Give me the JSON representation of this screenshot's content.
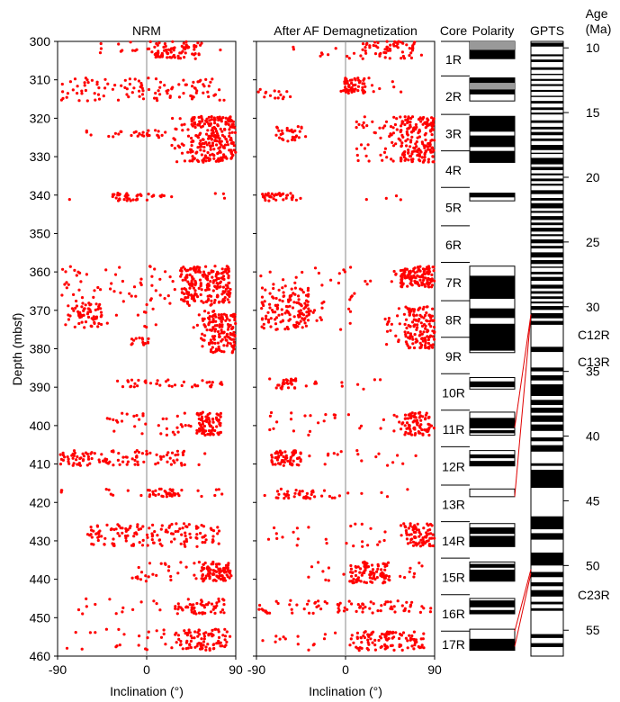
{
  "chart_data": [
    {
      "type": "scatter",
      "title": "NRM",
      "xlabel": "Inclination (°)",
      "ylabel": "Depth (mbsf)",
      "xlim": [
        -90,
        90
      ],
      "ylim": [
        300,
        460
      ],
      "xticks": [
        -90,
        0,
        90
      ],
      "yticks": [
        300,
        310,
        320,
        330,
        340,
        350,
        360,
        370,
        380,
        390,
        400,
        410,
        420,
        430,
        440,
        450,
        460
      ],
      "point_color": "#ff0000",
      "grid": false,
      "clusters": [
        {
          "depth": [
            300,
            304.5
          ],
          "inc": [
            -50,
            75
          ],
          "dense": [
            5,
            55
          ],
          "n": 90
        },
        {
          "depth": [
            309.5,
            315.5
          ],
          "inc": [
            -88,
            80
          ],
          "dense": [
            -85,
            80
          ],
          "n": 110
        },
        {
          "depth": [
            319.5,
            331.5
          ],
          "inc": [
            25,
            90
          ],
          "dense": [
            45,
            90
          ],
          "n": 260
        },
        {
          "depth": [
            323,
            325
          ],
          "inc": [
            -62,
            20
          ],
          "dense": [
            -62,
            20
          ],
          "n": 30
        },
        {
          "depth": [
            339.5,
            341.5
          ],
          "inc": [
            -80,
            87
          ],
          "dense": [
            -35,
            20
          ],
          "n": 45
        },
        {
          "depth": [
            358.5,
            368
          ],
          "inc": [
            -88,
            85
          ],
          "dense": [
            35,
            85
          ],
          "n": 260
        },
        {
          "depth": [
            368,
            374.5
          ],
          "inc": [
            -82,
            82
          ],
          "dense": [
            -82,
            -45
          ],
          "n": 90
        },
        {
          "depth": [
            371,
            381
          ],
          "inc": [
            55,
            90
          ],
          "dense": [
            62,
            90
          ],
          "n": 140
        },
        {
          "depth": [
            377,
            379
          ],
          "inc": [
            -20,
            5
          ],
          "dense": [
            -5,
            2
          ],
          "n": 15
        },
        {
          "depth": [
            388,
            390
          ],
          "inc": [
            -65,
            80
          ],
          "dense": [
            -30,
            80
          ],
          "n": 40
        },
        {
          "depth": [
            396.5,
            402.5
          ],
          "inc": [
            -40,
            75
          ],
          "dense": [
            50,
            75
          ],
          "n": 120
        },
        {
          "depth": [
            406.5,
            410.5
          ],
          "inc": [
            -88,
            60
          ],
          "dense": [
            -88,
            40
          ],
          "n": 110
        },
        {
          "depth": [
            416.5,
            418.5
          ],
          "inc": [
            -90,
            85
          ],
          "dense": [
            0,
            40
          ],
          "n": 50
        },
        {
          "depth": [
            425.5,
            431.5
          ],
          "inc": [
            -60,
            75
          ],
          "dense": [
            -60,
            75
          ],
          "n": 140
        },
        {
          "depth": [
            435.5,
            440.5
          ],
          "inc": [
            -15,
            90
          ],
          "dense": [
            55,
            85
          ],
          "n": 110
        },
        {
          "depth": [
            445,
            449
          ],
          "inc": [
            -70,
            80
          ],
          "dense": [
            30,
            80
          ],
          "n": 70
        },
        {
          "depth": [
            453,
            458.5
          ],
          "inc": [
            -85,
            85
          ],
          "dense": [
            30,
            85
          ],
          "n": 110
        }
      ]
    },
    {
      "type": "scatter",
      "title": "After AF Demagnetization",
      "xlabel": "Inclination (°)",
      "ylabel": "Depth (mbsf)",
      "xlim": [
        -90,
        90
      ],
      "ylim": [
        300,
        460
      ],
      "xticks": [
        -90,
        0,
        90
      ],
      "yticks": [
        300,
        310,
        320,
        330,
        340,
        350,
        360,
        370,
        380,
        390,
        400,
        410,
        420,
        430,
        440,
        450,
        460
      ],
      "point_color": "#ff0000",
      "grid": false,
      "clusters": [
        {
          "depth": [
            300,
            304.5
          ],
          "inc": [
            -60,
            80
          ],
          "dense": [
            15,
            70
          ],
          "n": 70
        },
        {
          "depth": [
            309.5,
            313.5
          ],
          "inc": [
            -5,
            60
          ],
          "dense": [
            -5,
            20
          ],
          "n": 60
        },
        {
          "depth": [
            312.5,
            315
          ],
          "inc": [
            -90,
            -55
          ],
          "dense": [
            -90,
            -55
          ],
          "n": 15
        },
        {
          "depth": [
            319.5,
            331.5
          ],
          "inc": [
            10,
            90
          ],
          "dense": [
            55,
            90
          ],
          "n": 220
        },
        {
          "depth": [
            322,
            326
          ],
          "inc": [
            -70,
            -35
          ],
          "dense": [
            -70,
            -35
          ],
          "n": 30
        },
        {
          "depth": [
            339.5,
            341.5
          ],
          "inc": [
            -88,
            85
          ],
          "dense": [
            -85,
            -50
          ],
          "n": 40
        },
        {
          "depth": [
            358.5,
            364
          ],
          "inc": [
            -90,
            90
          ],
          "dense": [
            55,
            90
          ],
          "n": 150
        },
        {
          "depth": [
            364,
            375
          ],
          "inc": [
            -90,
            10
          ],
          "dense": [
            -85,
            -35
          ],
          "n": 150
        },
        {
          "depth": [
            369,
            380
          ],
          "inc": [
            40,
            90
          ],
          "dense": [
            60,
            90
          ],
          "n": 150
        },
        {
          "depth": [
            387.5,
            390.5
          ],
          "inc": [
            -88,
            90
          ],
          "dense": [
            -70,
            -50
          ],
          "n": 40
        },
        {
          "depth": [
            396.5,
            402.5
          ],
          "inc": [
            -80,
            90
          ],
          "dense": [
            60,
            85
          ],
          "n": 110
        },
        {
          "depth": [
            406.5,
            410.5
          ],
          "inc": [
            -85,
            75
          ],
          "dense": [
            -75,
            -45
          ],
          "n": 80
        },
        {
          "depth": [
            416.5,
            419
          ],
          "inc": [
            -90,
            80
          ],
          "dense": [
            -70,
            -30
          ],
          "n": 45
        },
        {
          "depth": [
            425.5,
            431.5
          ],
          "inc": [
            -80,
            90
          ],
          "dense": [
            60,
            90
          ],
          "n": 100
        },
        {
          "depth": [
            435.5,
            441
          ],
          "inc": [
            -40,
            80
          ],
          "dense": [
            5,
            45
          ],
          "n": 110
        },
        {
          "depth": [
            445.5,
            449
          ],
          "inc": [
            -90,
            90
          ],
          "dense": [
            -85,
            90
          ],
          "n": 80
        },
        {
          "depth": [
            453.5,
            458.5
          ],
          "inc": [
            -85,
            80
          ],
          "dense": [
            5,
            80
          ],
          "n": 120
        }
      ]
    },
    {
      "type": "table",
      "title": "Core",
      "depth_range": [
        300,
        460
      ],
      "cores": [
        {
          "label": "1R",
          "top": 300,
          "bottom": 309
        },
        {
          "label": "2R",
          "top": 309,
          "bottom": 319
        },
        {
          "label": "3R",
          "top": 319,
          "bottom": 328.5
        },
        {
          "label": "4R",
          "top": 328.5,
          "bottom": 338
        },
        {
          "label": "5R",
          "top": 338,
          "bottom": 348
        },
        {
          "label": "6R",
          "top": 348,
          "bottom": 357.5
        },
        {
          "label": "7R",
          "top": 357.5,
          "bottom": 367.5
        },
        {
          "label": "8R",
          "top": 367.5,
          "bottom": 377
        },
        {
          "label": "9R",
          "top": 377,
          "bottom": 386.5
        },
        {
          "label": "10R",
          "top": 386.5,
          "bottom": 396
        },
        {
          "label": "11R",
          "top": 396,
          "bottom": 405.5
        },
        {
          "label": "12R",
          "top": 405.5,
          "bottom": 415.5
        },
        {
          "label": "13R",
          "top": 415.5,
          "bottom": 425
        },
        {
          "label": "14R",
          "top": 425,
          "bottom": 434.5
        },
        {
          "label": "15R",
          "top": 434.5,
          "bottom": 444
        },
        {
          "label": "16R",
          "top": 444,
          "bottom": 453.5
        },
        {
          "label": "17R",
          "top": 453.5,
          "bottom": 460
        }
      ]
    },
    {
      "type": "table",
      "title": "Polarity",
      "depth_range": [
        300,
        460
      ],
      "legend": {
        "normal": "#000000",
        "reversed": "#ffffff",
        "uncertain": "#999999"
      },
      "recovered_intervals": [
        [
          300,
          304.5
        ],
        [
          309.5,
          315.5
        ],
        [
          319.5,
          331.5
        ],
        [
          339.5,
          341.5
        ],
        [
          358.5,
          381
        ],
        [
          387.5,
          390.5
        ],
        [
          396.5,
          402.5
        ],
        [
          406.5,
          410.5
        ],
        [
          416.5,
          418.5
        ],
        [
          425.5,
          431.5
        ],
        [
          435.5,
          440.5
        ],
        [
          445,
          449
        ],
        [
          453,
          458.5
        ]
      ],
      "normal_intervals": [
        [
          302.2,
          304.5
        ],
        [
          309.5,
          310.8
        ],
        [
          312.5,
          313.8
        ],
        [
          319.5,
          323.5
        ],
        [
          324.5,
          327.5
        ],
        [
          328.5,
          331.5
        ],
        [
          339.5,
          340.6
        ],
        [
          361,
          367
        ],
        [
          369.5,
          372
        ],
        [
          373.5,
          380.5
        ],
        [
          388.5,
          390
        ],
        [
          398,
          400.7
        ],
        [
          401.2,
          402
        ],
        [
          407.5,
          408.5
        ],
        [
          409.2,
          410.5
        ],
        [
          426.5,
          428.2
        ],
        [
          428.7,
          431.5
        ],
        [
          436,
          437
        ],
        [
          437.5,
          440.5
        ],
        [
          445.5,
          447.3
        ],
        [
          448,
          449
        ],
        [
          455.5,
          458.5
        ]
      ],
      "uncertain_intervals": [
        [
          300,
          302.2
        ],
        [
          310.8,
          312.5
        ],
        [
          446,
          446.7
        ]
      ]
    },
    {
      "type": "table",
      "title": "GPTS",
      "ylabel": "Age (Ma)",
      "ylim": [
        9.5,
        57
      ],
      "yticks": [
        10,
        15,
        20,
        25,
        30,
        35,
        40,
        45,
        50,
        55
      ],
      "annotations": [
        "C12R",
        "C13R",
        "C23R"
      ],
      "normal_chrons": [
        [
          9.6,
          9.9
        ],
        [
          10.5,
          10.65
        ],
        [
          10.9,
          11.1
        ],
        [
          11.5,
          11.7
        ],
        [
          12.0,
          12.1
        ],
        [
          12.4,
          12.55
        ],
        [
          12.8,
          12.95
        ],
        [
          13.25,
          13.4
        ],
        [
          13.7,
          13.8
        ],
        [
          14.1,
          14.3
        ],
        [
          14.6,
          14.8
        ],
        [
          15.0,
          15.15
        ],
        [
          15.6,
          15.8
        ],
        [
          16.1,
          16.3
        ],
        [
          16.5,
          16.75
        ],
        [
          17.0,
          17.2
        ],
        [
          17.5,
          17.9
        ],
        [
          18.1,
          18.2
        ],
        [
          18.5,
          19.0
        ],
        [
          19.2,
          19.45
        ],
        [
          19.7,
          19.85
        ],
        [
          20.1,
          20.3
        ],
        [
          20.5,
          20.65
        ],
        [
          21.0,
          21.3
        ],
        [
          21.6,
          21.8
        ],
        [
          22.0,
          22.4
        ],
        [
          22.6,
          22.75
        ],
        [
          23.0,
          23.3
        ],
        [
          23.5,
          23.7
        ],
        [
          23.9,
          24.2
        ],
        [
          24.4,
          24.55
        ],
        [
          24.8,
          25.1
        ],
        [
          25.3,
          25.5
        ],
        [
          25.8,
          26.2
        ],
        [
          26.4,
          26.7
        ],
        [
          26.9,
          27.0
        ],
        [
          27.3,
          27.5
        ],
        [
          27.7,
          28.0
        ],
        [
          28.3,
          28.6
        ],
        [
          28.8,
          29.0
        ],
        [
          29.2,
          29.4
        ],
        [
          29.6,
          29.75
        ],
        [
          29.95,
          30.25
        ],
        [
          30.5,
          30.9
        ],
        [
          31.1,
          31.4
        ],
        [
          33.1,
          33.5
        ],
        [
          34.7,
          35.0
        ],
        [
          35.3,
          35.7
        ],
        [
          36.0,
          36.9
        ],
        [
          37.2,
          37.6
        ],
        [
          37.8,
          38.2
        ],
        [
          38.4,
          38.9
        ],
        [
          39.1,
          39.6
        ],
        [
          40.1,
          40.4
        ],
        [
          40.7,
          41.2
        ],
        [
          42.1,
          42.3
        ],
        [
          42.6,
          44.0
        ],
        [
          46.2,
          47.2
        ],
        [
          47.5,
          48.0
        ],
        [
          49.0,
          50.0
        ],
        [
          50.5,
          50.9
        ],
        [
          51.3,
          51.6
        ],
        [
          51.9,
          52.4
        ],
        [
          52.8,
          53.0
        ],
        [
          53.3,
          53.5
        ],
        [
          55.3,
          55.6
        ],
        [
          56.0,
          56.3
        ]
      ]
    }
  ],
  "gpts_correlations": [
    {
      "from_depth": 400.5,
      "to_age": 30.6
    },
    {
      "from_depth": 418.5,
      "to_age": 30.6
    },
    {
      "from_depth": 453.5,
      "to_age": 50.3
    },
    {
      "from_depth": 457.5,
      "to_age": 50.6
    }
  ]
}
